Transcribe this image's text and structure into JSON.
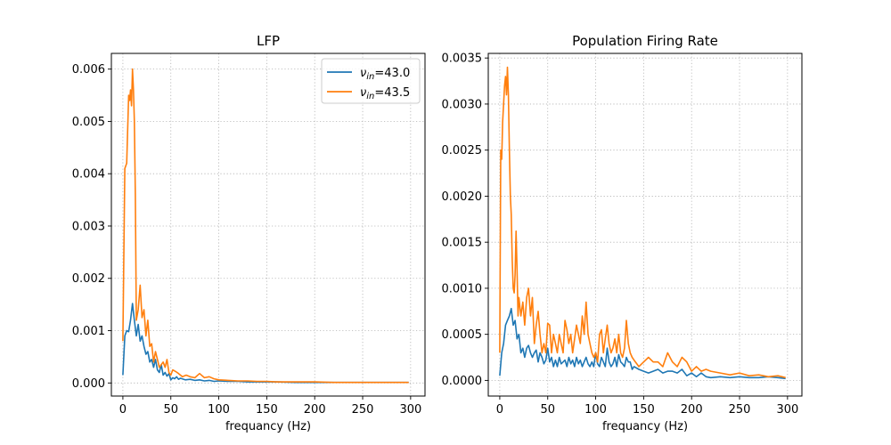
{
  "colors": {
    "blue": "#1f77b4",
    "orange": "#ff7f0e"
  },
  "chart_data": [
    {
      "type": "line",
      "title": "LFP",
      "xlabel": "frequancy (Hz)",
      "ylabel": "",
      "xlim": [
        -12,
        315
      ],
      "ylim": [
        -0.00025,
        0.0063
      ],
      "xticks": [
        0,
        50,
        100,
        150,
        200,
        250,
        300
      ],
      "yticks": [
        0.0,
        0.001,
        0.002,
        0.003,
        0.004,
        0.005,
        0.006
      ],
      "ytick_labels": [
        "0.000",
        "0.001",
        "0.002",
        "0.003",
        "0.004",
        "0.005",
        "0.006"
      ],
      "grid": true,
      "legend_position": "top-right",
      "legend": [
        {
          "prefix": "ν",
          "sub": "in",
          "suffix": "=43.0",
          "color": "blue"
        },
        {
          "prefix": "ν",
          "sub": "in",
          "suffix": "=43.5",
          "color": "orange"
        }
      ],
      "series": [
        {
          "color": "blue",
          "x": [
            0,
            2,
            4,
            6,
            8,
            10,
            12,
            14,
            16,
            18,
            20,
            22,
            24,
            26,
            28,
            30,
            32,
            34,
            36,
            38,
            40,
            42,
            44,
            46,
            48,
            50,
            52,
            54,
            56,
            58,
            60,
            65,
            70,
            75,
            80,
            85,
            90,
            95,
            100,
            110,
            120,
            130,
            140,
            150,
            160,
            180,
            200,
            220,
            240,
            260,
            280,
            298
          ],
          "y": [
            0.00015,
            0.0009,
            0.001,
            0.00098,
            0.0012,
            0.00152,
            0.0012,
            0.0009,
            0.00112,
            0.0008,
            0.0009,
            0.0007,
            0.00055,
            0.0006,
            0.0004,
            0.00045,
            0.0003,
            0.00045,
            0.00025,
            0.0002,
            0.00035,
            0.00015,
            0.0002,
            0.00013,
            0.00018,
            6e-05,
            0.0001,
            8e-05,
            0.00012,
            7e-05,
            9e-05,
            6e-05,
            7e-05,
            5e-05,
            6e-05,
            4e-05,
            5e-05,
            3e-05,
            4e-05,
            3e-05,
            3e-05,
            2e-05,
            2e-05,
            2e-05,
            2e-05,
            1e-05,
            1e-05,
            1e-05,
            1e-05,
            1e-05,
            1e-05,
            1e-05
          ]
        },
        {
          "color": "orange",
          "x": [
            0,
            2,
            4,
            6,
            7,
            8,
            9,
            10,
            11,
            12,
            13,
            14,
            16,
            18,
            20,
            22,
            24,
            26,
            28,
            30,
            32,
            34,
            36,
            38,
            40,
            42,
            44,
            46,
            48,
            50,
            52,
            55,
            58,
            62,
            66,
            70,
            75,
            80,
            85,
            90,
            95,
            100,
            110,
            120,
            130,
            140,
            150,
            160,
            180,
            200,
            220,
            240,
            260,
            280,
            298
          ],
          "y": [
            0.0008,
            0.0041,
            0.0042,
            0.0055,
            0.0054,
            0.0056,
            0.0053,
            0.006,
            0.0056,
            0.005,
            0.0036,
            0.0012,
            0.0014,
            0.00187,
            0.00125,
            0.0014,
            0.0009,
            0.0012,
            0.0007,
            0.00075,
            0.0004,
            0.0006,
            0.00045,
            0.0003,
            0.00035,
            0.0004,
            0.0003,
            0.00045,
            0.0002,
            0.00015,
            0.00025,
            0.00022,
            0.00018,
            0.00012,
            0.00015,
            0.00012,
            0.0001,
            0.00018,
            0.0001,
            0.00012,
            8e-05,
            6e-05,
            5e-05,
            4e-05,
            4e-05,
            3e-05,
            3e-05,
            2e-05,
            2e-05,
            2e-05,
            1e-05,
            1e-05,
            1e-05,
            1e-05,
            1e-05
          ]
        }
      ]
    },
    {
      "type": "line",
      "title": "Population Firing Rate",
      "xlabel": "frequancy (Hz)",
      "ylabel": "",
      "xlim": [
        -12,
        315
      ],
      "ylim": [
        -0.00017,
        0.00355
      ],
      "xticks": [
        0,
        50,
        100,
        150,
        200,
        250,
        300
      ],
      "yticks": [
        0.0,
        0.0005,
        0.001,
        0.0015,
        0.002,
        0.0025,
        0.003,
        0.0035
      ],
      "ytick_labels": [
        "0.0000",
        "0.0005",
        "0.0010",
        "0.0015",
        "0.0020",
        "0.0025",
        "0.0030",
        "0.0035"
      ],
      "grid": true,
      "series": [
        {
          "color": "blue",
          "x": [
            0,
            2,
            4,
            6,
            8,
            10,
            12,
            14,
            16,
            18,
            20,
            22,
            24,
            26,
            28,
            30,
            32,
            34,
            36,
            38,
            40,
            42,
            44,
            46,
            48,
            50,
            52,
            54,
            56,
            58,
            60,
            62,
            64,
            66,
            68,
            70,
            72,
            74,
            76,
            78,
            80,
            82,
            84,
            86,
            88,
            90,
            92,
            94,
            96,
            98,
            100,
            102,
            104,
            106,
            108,
            110,
            112,
            114,
            116,
            118,
            120,
            122,
            124,
            126,
            128,
            130,
            132,
            134,
            136,
            138,
            140,
            145,
            150,
            155,
            160,
            165,
            170,
            175,
            180,
            185,
            190,
            195,
            200,
            205,
            210,
            215,
            220,
            230,
            240,
            250,
            260,
            270,
            280,
            290,
            298
          ],
          "y": [
            5e-05,
            0.0003,
            0.0004,
            0.0006,
            0.00065,
            0.0007,
            0.00078,
            0.0006,
            0.00065,
            0.00045,
            0.0005,
            0.0003,
            0.00035,
            0.00025,
            0.00035,
            0.00038,
            0.0003,
            0.00025,
            0.0003,
            0.00033,
            0.0002,
            0.0003,
            0.00025,
            0.00018,
            0.00022,
            0.00035,
            0.0002,
            0.00025,
            0.00015,
            0.00022,
            0.00015,
            0.00025,
            0.00018,
            0.0002,
            0.00022,
            0.00015,
            0.00025,
            0.00018,
            0.00022,
            0.00015,
            0.00025,
            0.00018,
            0.00022,
            0.00015,
            0.0002,
            0.00025,
            0.00018,
            0.00015,
            0.0002,
            0.00015,
            0.0003,
            0.00018,
            0.00015,
            0.00025,
            0.0002,
            0.00015,
            0.00035,
            0.0002,
            0.00015,
            0.00018,
            0.00025,
            0.00015,
            0.00028,
            0.0002,
            0.00018,
            0.00015,
            0.00025,
            0.0002,
            0.0002,
            0.00012,
            0.00015,
            0.00012,
            0.0001,
            8e-05,
            0.0001,
            0.00012,
            8e-05,
            0.0001,
            0.0001,
            8e-05,
            0.00012,
            5e-05,
            8e-05,
            4e-05,
            8e-05,
            4e-05,
            3e-05,
            4e-05,
            3e-05,
            4e-05,
            3e-05,
            3e-05,
            4e-05,
            3e-05,
            2e-05
          ]
        },
        {
          "color": "orange",
          "x": [
            0,
            1,
            2,
            3,
            4,
            5,
            6,
            7,
            8,
            9,
            10,
            11,
            12,
            13,
            14,
            15,
            16,
            17,
            18,
            19,
            20,
            22,
            24,
            26,
            28,
            30,
            32,
            34,
            36,
            38,
            40,
            42,
            44,
            46,
            48,
            50,
            52,
            54,
            56,
            58,
            60,
            62,
            64,
            66,
            68,
            70,
            72,
            74,
            76,
            78,
            80,
            82,
            84,
            86,
            88,
            90,
            92,
            94,
            96,
            98,
            100,
            102,
            104,
            106,
            108,
            110,
            112,
            114,
            116,
            118,
            120,
            122,
            124,
            126,
            128,
            130,
            132,
            134,
            136,
            138,
            140,
            145,
            150,
            155,
            160,
            165,
            170,
            175,
            180,
            185,
            190,
            195,
            200,
            205,
            210,
            215,
            220,
            230,
            240,
            250,
            260,
            270,
            280,
            290,
            298
          ],
          "y": [
            0.0003,
            0.0025,
            0.0024,
            0.0028,
            0.003,
            0.0032,
            0.0033,
            0.0031,
            0.0034,
            0.0031,
            0.0025,
            0.002,
            0.0018,
            0.0013,
            0.001,
            0.00095,
            0.00115,
            0.00162,
            0.0012,
            0.0007,
            0.0009,
            0.0007,
            0.00085,
            0.0006,
            0.0009,
            0.001,
            0.0007,
            0.0009,
            0.0004,
            0.0006,
            0.00075,
            0.0005,
            0.0003,
            0.0004,
            0.0003,
            0.00062,
            0.0006,
            0.0003,
            0.0005,
            0.0004,
            0.0003,
            0.0005,
            0.0004,
            0.0003,
            0.00065,
            0.00055,
            0.0004,
            0.0005,
            0.0003,
            0.00045,
            0.0006,
            0.0005,
            0.0004,
            0.0007,
            0.0005,
            0.00085,
            0.0005,
            0.0004,
            0.0003,
            0.00025,
            0.0003,
            0.0002,
            0.0005,
            0.00055,
            0.0003,
            0.00045,
            0.0006,
            0.0004,
            0.0003,
            0.00035,
            0.00045,
            0.0003,
            0.0005,
            0.0003,
            0.00025,
            0.00035,
            0.00065,
            0.0004,
            0.0003,
            0.00025,
            0.00022,
            0.00015,
            0.0002,
            0.00025,
            0.0002,
            0.0002,
            0.00015,
            0.0003,
            0.0002,
            0.00015,
            0.00025,
            0.0002,
            0.0001,
            0.00015,
            0.0001,
            0.00012,
            0.0001,
            8e-05,
            6e-05,
            8e-05,
            5e-05,
            6e-05,
            4e-05,
            5e-05,
            3e-05
          ]
        }
      ]
    }
  ]
}
